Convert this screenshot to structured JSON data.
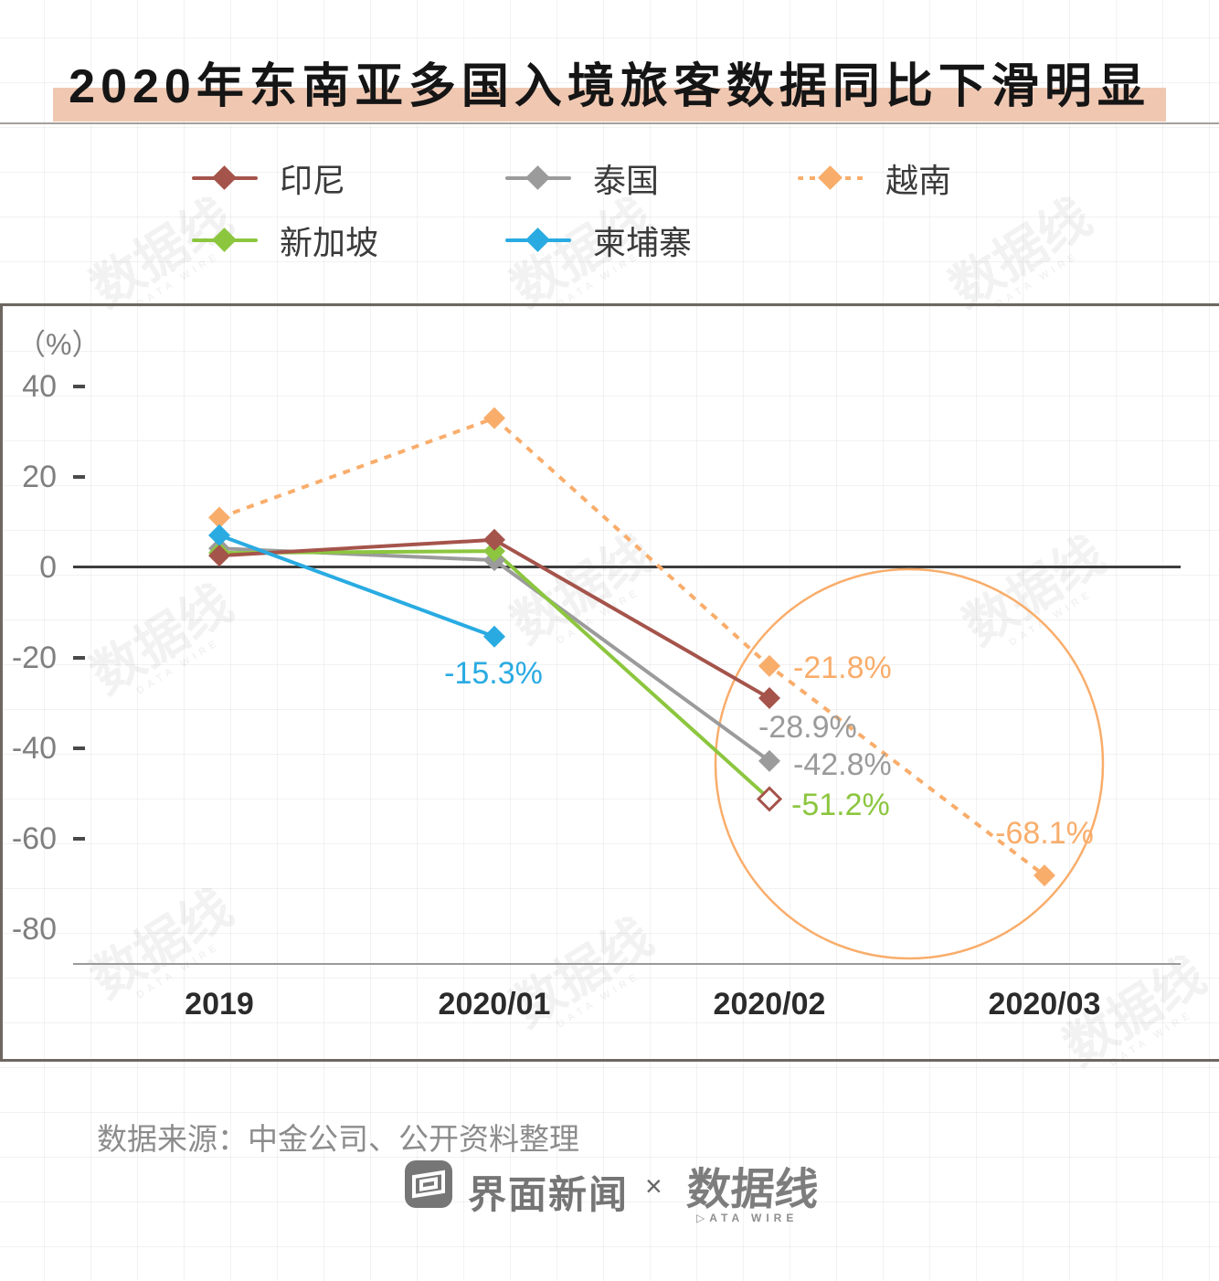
{
  "title": {
    "text": "2020年东南亚多国入境旅客数据同比下滑明显"
  },
  "chart_data": {
    "type": "line",
    "title": "2020年东南亚多国入境旅客数据同比下滑明显",
    "unit_label": "（%）",
    "categories": [
      "2019",
      "2020/01",
      "2020/02",
      "2020/03"
    ],
    "yticks": [
      "40",
      "20",
      "0",
      "-20",
      "-40",
      "-60",
      "-80"
    ],
    "ylim": [
      -88,
      58
    ],
    "legend_position": "top",
    "grid": true,
    "series": [
      {
        "name": "印尼",
        "color": "#a5544b",
        "line_style": "solid",
        "values": [
          2.6,
          6.1,
          -28.9,
          null
        ],
        "labels": [
          null,
          null,
          "-28.9%",
          null
        ],
        "label_color": "#9b9b9b"
      },
      {
        "name": "泰国",
        "color": "#9b9b9b",
        "line_style": "solid",
        "values": [
          4.2,
          1.6,
          -42.8,
          null
        ],
        "labels": [
          null,
          null,
          "-42.8%",
          null
        ],
        "label_color": "#9b9b9b"
      },
      {
        "name": "越南",
        "color": "#f9ad6b",
        "line_style": "dashed",
        "values": [
          11,
          33,
          -21.8,
          -68.1
        ],
        "labels": [
          null,
          null,
          "-21.8%",
          "-68.1%"
        ],
        "label_color": "#f9ad6b"
      },
      {
        "name": "新加坡",
        "color": "#8cc63f",
        "line_style": "solid",
        "values": [
          3.2,
          3.6,
          -51.2,
          null
        ],
        "labels": [
          null,
          null,
          "-51.2%",
          null
        ],
        "label_color": "#8cc63f",
        "last_marker": "hollow",
        "hollow_stroke": "#a5544b"
      },
      {
        "name": "柬埔寨",
        "color": "#29abe2",
        "line_style": "solid",
        "values": [
          7.1,
          -15.3,
          null,
          null
        ],
        "labels": [
          null,
          "-15.3%",
          null,
          null
        ],
        "label_color": "#29abe2"
      }
    ],
    "annotation": {
      "shape": "circle",
      "color": "#f9ad6b",
      "around": [
        "2020/02",
        "2020/03"
      ]
    }
  },
  "footer": {
    "source": "数据来源：中金公司、公开资料整理",
    "jiemian": "界面新闻",
    "cross": "×",
    "datawire": "数据线",
    "datawire_sub": "▷ATA WIRE"
  },
  "watermark": {
    "text": "数据线",
    "sub": "DATA WIRE"
  }
}
